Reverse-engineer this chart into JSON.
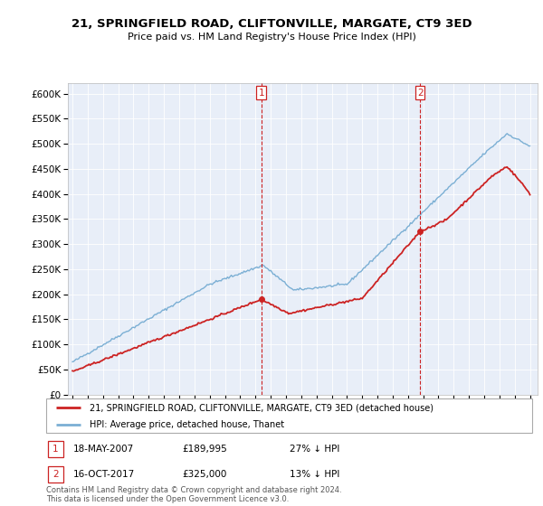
{
  "title": "21, SPRINGFIELD ROAD, CLIFTONVILLE, MARGATE, CT9 3ED",
  "subtitle": "Price paid vs. HM Land Registry's House Price Index (HPI)",
  "hpi_label": "HPI: Average price, detached house, Thanet",
  "property_label": "21, SPRINGFIELD ROAD, CLIFTONVILLE, MARGATE, CT9 3ED (detached house)",
  "footer": "Contains HM Land Registry data © Crown copyright and database right 2024.\nThis data is licensed under the Open Government Licence v3.0.",
  "hpi_color": "#7bafd4",
  "property_color": "#cc2222",
  "annotation_color": "#cc2222",
  "background_color": "#e8eef8",
  "purchase1_year": 2007.38,
  "purchase1_price": 189995,
  "purchase2_year": 2017.79,
  "purchase2_price": 325000,
  "ylim": [
    0,
    620000
  ],
  "yticks": [
    0,
    50000,
    100000,
    150000,
    200000,
    250000,
    300000,
    350000,
    400000,
    450000,
    500000,
    550000,
    600000
  ],
  "ytick_labels": [
    "£0",
    "£50K",
    "£100K",
    "£150K",
    "£200K",
    "£250K",
    "£300K",
    "£350K",
    "£400K",
    "£450K",
    "£500K",
    "£550K",
    "£600K"
  ],
  "xlim_start": 1994.7,
  "xlim_end": 2025.5
}
